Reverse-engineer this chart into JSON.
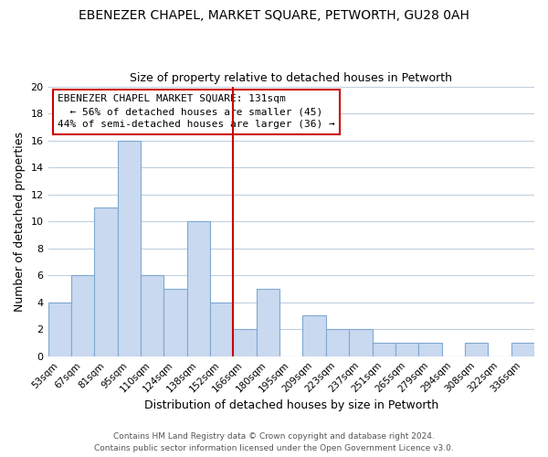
{
  "title": "EBENEZER CHAPEL, MARKET SQUARE, PETWORTH, GU28 0AH",
  "subtitle": "Size of property relative to detached houses in Petworth",
  "xlabel": "Distribution of detached houses by size in Petworth",
  "ylabel": "Number of detached properties",
  "bar_labels": [
    "53sqm",
    "67sqm",
    "81sqm",
    "95sqm",
    "110sqm",
    "124sqm",
    "138sqm",
    "152sqm",
    "166sqm",
    "180sqm",
    "195sqm",
    "209sqm",
    "223sqm",
    "237sqm",
    "251sqm",
    "265sqm",
    "279sqm",
    "294sqm",
    "308sqm",
    "322sqm",
    "336sqm"
  ],
  "bar_values": [
    4,
    6,
    11,
    16,
    6,
    5,
    10,
    4,
    2,
    5,
    0,
    3,
    2,
    2,
    1,
    1,
    1,
    0,
    1,
    0,
    1
  ],
  "bar_color": "#c9d9f0",
  "bar_edge_color": "#7fa8d0",
  "grid_color": "#c0cfe0",
  "vline_x": 7.5,
  "vline_color": "#cc0000",
  "annotation_title": "EBENEZER CHAPEL MARKET SQUARE: 131sqm",
  "annotation_line1": "← 56% of detached houses are smaller (45)",
  "annotation_line2": "44% of semi-detached houses are larger (36) →",
  "annotation_box_color": "#ffffff",
  "annotation_box_edge": "#cc0000",
  "ylim": [
    0,
    20
  ],
  "yticks": [
    0,
    2,
    4,
    6,
    8,
    10,
    12,
    14,
    16,
    18,
    20
  ],
  "footer1": "Contains HM Land Registry data © Crown copyright and database right 2024.",
  "footer2": "Contains public sector information licensed under the Open Government Licence v3.0."
}
